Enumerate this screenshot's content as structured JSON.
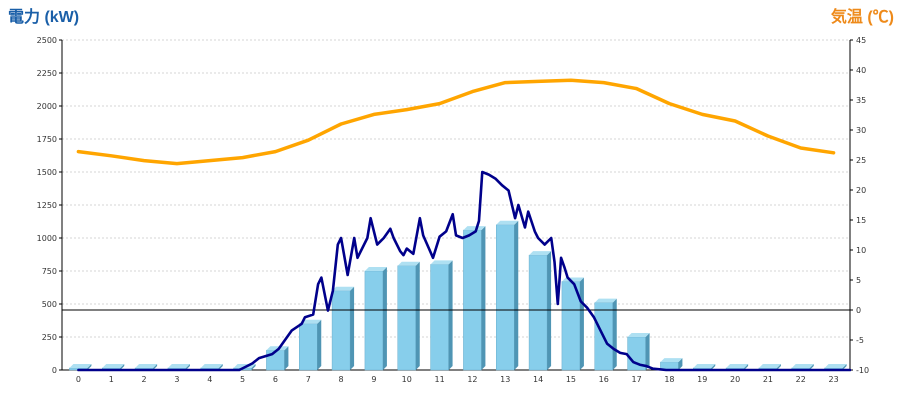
{
  "chart_data": {
    "type": "bar",
    "colors": {
      "bar": "#87CEEB",
      "bar_side": "#4f95b4",
      "bar_top": "#aee0f2",
      "power_line": "#00008B",
      "temp_line": "#FFA500",
      "left_title": "#1a5fa8",
      "right_title": "#ee8a1a",
      "grid": "#c8c8c8"
    },
    "left_axis": {
      "title": "電力 (kW)",
      "range": [
        0,
        2500
      ],
      "ticks": [
        "0",
        "250",
        "500",
        "750",
        "1000",
        "1250",
        "1500",
        "1750",
        "2000",
        "2250",
        "2500"
      ]
    },
    "right_axis": {
      "title": "気温 (℃)",
      "range": [
        -10,
        45
      ],
      "ticks": [
        "-10",
        "-5",
        "0",
        "5",
        "10",
        "15",
        "20",
        "25",
        "30",
        "35",
        "40",
        "45"
      ]
    },
    "x_axis": {
      "categories": [
        "0",
        "1",
        "2",
        "3",
        "4",
        "5",
        "6",
        "7",
        "8",
        "9",
        "10",
        "11",
        "12",
        "13",
        "14",
        "15",
        "16",
        "17",
        "18",
        "19",
        "20",
        "21",
        "22",
        "23"
      ]
    },
    "reference_line": {
      "axis": "right",
      "value": 0
    },
    "series": [
      {
        "kind": "bar",
        "axis": "left",
        "values": [
          0,
          0,
          0,
          0,
          0,
          0,
          150,
          350,
          600,
          750,
          790,
          800,
          1060,
          1100,
          870,
          670,
          510,
          250,
          60,
          0,
          0,
          0,
          0,
          0
        ]
      },
      {
        "kind": "line",
        "axis": "right",
        "x": [
          0,
          1,
          2,
          3,
          4,
          5,
          6,
          7,
          8,
          9,
          10,
          11,
          12,
          13,
          14,
          15,
          16,
          17,
          18,
          19,
          20,
          21,
          22,
          23
        ],
        "values": [
          26.4,
          25.7,
          24.9,
          24.4,
          24.9,
          25.4,
          26.4,
          28.3,
          31.0,
          32.6,
          33.4,
          34.4,
          36.4,
          37.9,
          38.1,
          38.3,
          37.9,
          36.9,
          34.4,
          32.6,
          31.5,
          29.0,
          27.0,
          26.2
        ]
      },
      {
        "kind": "line",
        "axis": "left",
        "x": [
          0,
          4.9,
          5.3,
          5.5,
          5.9,
          6.1,
          6.5,
          6.8,
          6.9,
          7.15,
          7.3,
          7.4,
          7.6,
          7.75,
          7.9,
          8.0,
          8.2,
          8.4,
          8.5,
          8.8,
          8.9,
          9.1,
          9.3,
          9.5,
          9.6,
          9.8,
          9.9,
          10.0,
          10.2,
          10.4,
          10.5,
          10.8,
          11.0,
          11.2,
          11.4,
          11.5,
          11.7,
          11.9,
          12.1,
          12.2,
          12.3,
          12.5,
          12.7,
          12.9,
          13.1,
          13.3,
          13.4,
          13.6,
          13.7,
          13.9,
          14.0,
          14.2,
          14.4,
          14.5,
          14.6,
          14.7,
          14.8,
          14.9,
          15.1,
          15.3,
          15.5,
          15.7,
          15.9,
          16.1,
          16.3,
          16.5,
          16.7,
          16.9,
          17.1,
          17.3,
          17.5,
          17.7,
          17.9,
          18.0,
          23.5
        ],
        "values": [
          0,
          0,
          50,
          90,
          120,
          160,
          300,
          350,
          400,
          420,
          650,
          700,
          450,
          600,
          950,
          1000,
          720,
          1000,
          850,
          1000,
          1150,
          950,
          1000,
          1070,
          1000,
          900,
          870,
          920,
          880,
          1150,
          1020,
          850,
          1010,
          1050,
          1180,
          1020,
          1000,
          1020,
          1050,
          1130,
          1500,
          1480,
          1450,
          1400,
          1360,
          1150,
          1250,
          1080,
          1200,
          1050,
          1000,
          950,
          1000,
          820,
          500,
          850,
          780,
          700,
          650,
          520,
          470,
          400,
          300,
          200,
          160,
          130,
          120,
          60,
          40,
          30,
          10,
          5,
          0,
          0,
          0
        ]
      }
    ]
  }
}
